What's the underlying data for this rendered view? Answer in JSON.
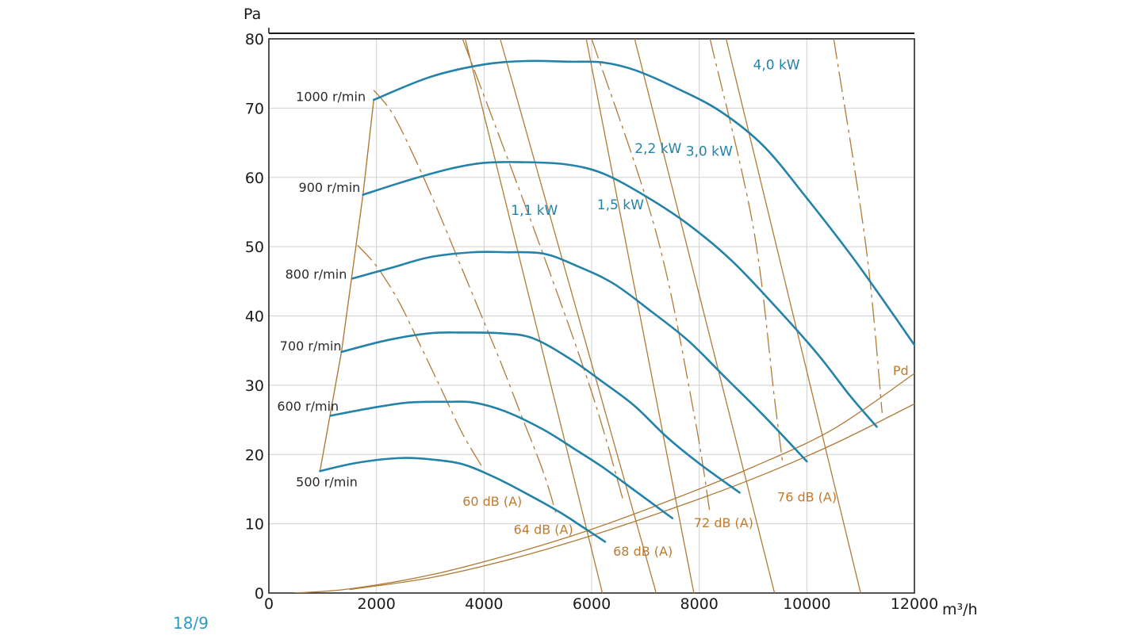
{
  "colors": {
    "fan_curve": "#2382a8",
    "overlay_lines": "#b07a35",
    "label_orange": "#c07a2c",
    "page_number": "#2a9bc4",
    "grid": "#d0d0d0"
  },
  "page_number": "18/9",
  "chart_data": {
    "type": "line",
    "ylabel": "Pa",
    "xlabel": "m³/h",
    "xlim": [
      0,
      12000
    ],
    "ylim": [
      0,
      80
    ],
    "x_ticks": [
      "0",
      "2000",
      "4000",
      "6000",
      "8000",
      "10000",
      "12000"
    ],
    "y_ticks": [
      "0",
      "10",
      "20",
      "30",
      "40",
      "50",
      "60",
      "70",
      "80"
    ],
    "x_tick_values": [
      0,
      2000,
      4000,
      6000,
      8000,
      10000,
      12000
    ],
    "y_tick_values": [
      0,
      10,
      20,
      30,
      40,
      50,
      60,
      70,
      80
    ],
    "grid": true,
    "speed_curves": [
      {
        "name": "1000 r/min",
        "points": [
          [
            1950,
            71.2
          ],
          [
            3000,
            74.5
          ],
          [
            4000,
            76.3
          ],
          [
            4800,
            76.8
          ],
          [
            5600,
            76.7
          ],
          [
            6200,
            76.6
          ],
          [
            6800,
            75.5
          ],
          [
            7600,
            72.8
          ],
          [
            8400,
            69.5
          ],
          [
            9200,
            64.5
          ],
          [
            10000,
            57
          ],
          [
            10800,
            49
          ],
          [
            11400,
            42.5
          ],
          [
            12000,
            35.8
          ]
        ]
      },
      {
        "name": "900 r/min",
        "points": [
          [
            1750,
            57.5
          ],
          [
            2600,
            59.6
          ],
          [
            3400,
            61.3
          ],
          [
            4000,
            62.1
          ],
          [
            4700,
            62.2
          ],
          [
            5500,
            61.9
          ],
          [
            6200,
            60.6
          ],
          [
            7000,
            57.3
          ],
          [
            7800,
            53.2
          ],
          [
            8600,
            48
          ],
          [
            9400,
            41.5
          ],
          [
            10200,
            34.5
          ],
          [
            10800,
            28.5
          ],
          [
            11300,
            24
          ]
        ]
      },
      {
        "name": "800 r/min",
        "points": [
          [
            1550,
            45.4
          ],
          [
            2300,
            47
          ],
          [
            3000,
            48.5
          ],
          [
            3800,
            49.2
          ],
          [
            4400,
            49.2
          ],
          [
            5100,
            49
          ],
          [
            5700,
            47.3
          ],
          [
            6400,
            44.7
          ],
          [
            7100,
            40.7
          ],
          [
            7800,
            36.4
          ],
          [
            8500,
            31
          ],
          [
            9200,
            25.6
          ],
          [
            10000,
            19
          ]
        ]
      },
      {
        "name": "700 r/min",
        "points": [
          [
            1350,
            34.8
          ],
          [
            2200,
            36.5
          ],
          [
            3000,
            37.5
          ],
          [
            3600,
            37.6
          ],
          [
            4300,
            37.5
          ],
          [
            4900,
            36.8
          ],
          [
            5600,
            33.8
          ],
          [
            6200,
            30.5
          ],
          [
            6800,
            27
          ],
          [
            7400,
            22.5
          ],
          [
            8000,
            18.7
          ],
          [
            8750,
            14.5
          ]
        ]
      },
      {
        "name": "600 r/min",
        "points": [
          [
            1150,
            25.6
          ],
          [
            1900,
            26.7
          ],
          [
            2600,
            27.5
          ],
          [
            3300,
            27.6
          ],
          [
            3800,
            27.5
          ],
          [
            4400,
            26.2
          ],
          [
            5100,
            23.6
          ],
          [
            5700,
            20.7
          ],
          [
            6200,
            18.2
          ],
          [
            6800,
            14.8
          ],
          [
            7500,
            10.8
          ]
        ]
      },
      {
        "name": "500 r/min",
        "points": [
          [
            950,
            17.6
          ],
          [
            1500,
            18.6
          ],
          [
            2000,
            19.2
          ],
          [
            2500,
            19.5
          ],
          [
            3000,
            19.3
          ],
          [
            3600,
            18.6
          ],
          [
            4200,
            16.7
          ],
          [
            4800,
            14.3
          ],
          [
            5400,
            11.7
          ],
          [
            5800,
            9.7
          ],
          [
            6250,
            7.4
          ]
        ]
      }
    ],
    "operating_limit_line": [
      [
        950,
        17.6
      ],
      [
        1350,
        34.8
      ],
      [
        1750,
        57.5
      ],
      [
        1950,
        71.2
      ]
    ],
    "power_lines": [
      {
        "label": "1,1 kW",
        "points": [
          [
            3650,
            80
          ],
          [
            6200,
            0
          ]
        ]
      },
      {
        "label": "1,5 kW",
        "points": [
          [
            4300,
            80
          ],
          [
            7200,
            0
          ]
        ]
      },
      {
        "label": "2,2 kW",
        "points": [
          [
            5900,
            80
          ],
          [
            7900,
            0
          ]
        ]
      },
      {
        "label": "3,0 kW",
        "points": [
          [
            6800,
            80
          ],
          [
            9400,
            0
          ]
        ]
      },
      {
        "label": "4,0 kW",
        "points": [
          [
            8500,
            80
          ],
          [
            11000,
            0
          ]
        ]
      }
    ],
    "noise_curves": [
      {
        "label": "60 dB (A)",
        "points": [
          [
            1650,
            50.2
          ],
          [
            2000,
            47.2
          ],
          [
            2400,
            42.3
          ],
          [
            2800,
            36
          ],
          [
            3200,
            29.5
          ],
          [
            3600,
            23
          ],
          [
            3950,
            18.4
          ]
        ]
      },
      {
        "label": "64 dB (A)",
        "points": [
          [
            1950,
            72.6
          ],
          [
            2300,
            69.2
          ],
          [
            2700,
            63
          ],
          [
            3100,
            56
          ],
          [
            3500,
            48.5
          ],
          [
            3900,
            41
          ],
          [
            4300,
            33.5
          ],
          [
            4700,
            25.5
          ],
          [
            5100,
            17.5
          ],
          [
            5350,
            11.2
          ]
        ]
      },
      {
        "label": "68 dB (A)",
        "points": [
          [
            3600,
            80
          ],
          [
            5000,
            51
          ],
          [
            6000,
            29
          ],
          [
            6600,
            13
          ]
        ]
      },
      {
        "label": "72 dB (A)",
        "points": [
          [
            6000,
            80
          ],
          [
            7200,
            52
          ],
          [
            7900,
            26
          ],
          [
            8200,
            11.5
          ]
        ]
      },
      {
        "label": "76 dB (A)",
        "points": [
          [
            8200,
            80
          ],
          [
            9000,
            53
          ],
          [
            9400,
            28
          ],
          [
            9550,
            18.8
          ]
        ]
      },
      {
        "label": "",
        "points": [
          [
            10500,
            80
          ],
          [
            11100,
            50
          ],
          [
            11400,
            26
          ]
        ]
      }
    ],
    "pd_label": "Pd",
    "pd_curves": [
      {
        "points": [
          [
            480,
            0
          ],
          [
            1500,
            0.6
          ],
          [
            3000,
            2.6
          ],
          [
            4500,
            5.6
          ],
          [
            6000,
            9.2
          ],
          [
            7500,
            13.5
          ],
          [
            9000,
            18.2
          ],
          [
            10500,
            23.7
          ],
          [
            12000,
            31.7
          ]
        ]
      },
      {
        "points": [
          [
            1500,
            0.5
          ],
          [
            3000,
            2.2
          ],
          [
            4500,
            4.9
          ],
          [
            6000,
            8.3
          ],
          [
            7500,
            12.2
          ],
          [
            9000,
            16.5
          ],
          [
            10500,
            21.5
          ],
          [
            12000,
            27.3
          ]
        ]
      }
    ],
    "annotations": [
      {
        "text": "4,0 kW",
        "x": 9000,
        "y": 75.6,
        "kind": "power"
      },
      {
        "text": "2,2 kW",
        "x": 6800,
        "y": 63.5,
        "kind": "power"
      },
      {
        "text": "3,0 kW",
        "x": 7750,
        "y": 63.1,
        "kind": "power"
      },
      {
        "text": "1,1 kW",
        "x": 4500,
        "y": 54.6,
        "kind": "power"
      },
      {
        "text": "1,5 kW",
        "x": 6100,
        "y": 55.4,
        "kind": "power"
      },
      {
        "text": "60 dB (A)",
        "x": 3600,
        "y": 12.6,
        "kind": "noise"
      },
      {
        "text": "64 dB (A)",
        "x": 4550,
        "y": 8.5,
        "kind": "noise"
      },
      {
        "text": "68 dB (A)",
        "x": 6400,
        "y": 5.4,
        "kind": "noise"
      },
      {
        "text": "72 dB (A)",
        "x": 7900,
        "y": 9.5,
        "kind": "noise"
      },
      {
        "text": "76 dB (A)",
        "x": 9450,
        "y": 13.2,
        "kind": "noise"
      },
      {
        "text": "1000 r/min",
        "x": 1800,
        "y": 71.0,
        "kind": "speed"
      },
      {
        "text": "900 r/min",
        "x": 1700,
        "y": 57.9,
        "kind": "speed"
      },
      {
        "text": "800 r/min",
        "x": 1450,
        "y": 45.4,
        "kind": "speed"
      },
      {
        "text": "700 r/min",
        "x": 1350,
        "y": 35.0,
        "kind": "speed"
      },
      {
        "text": "600 r/min",
        "x": 1300,
        "y": 26.3,
        "kind": "speed"
      },
      {
        "text": "500 r/min",
        "x": 1650,
        "y": 15.4,
        "kind": "speed"
      },
      {
        "text": "Pd",
        "x": 11600,
        "y": 31.5,
        "kind": "pd"
      }
    ]
  }
}
